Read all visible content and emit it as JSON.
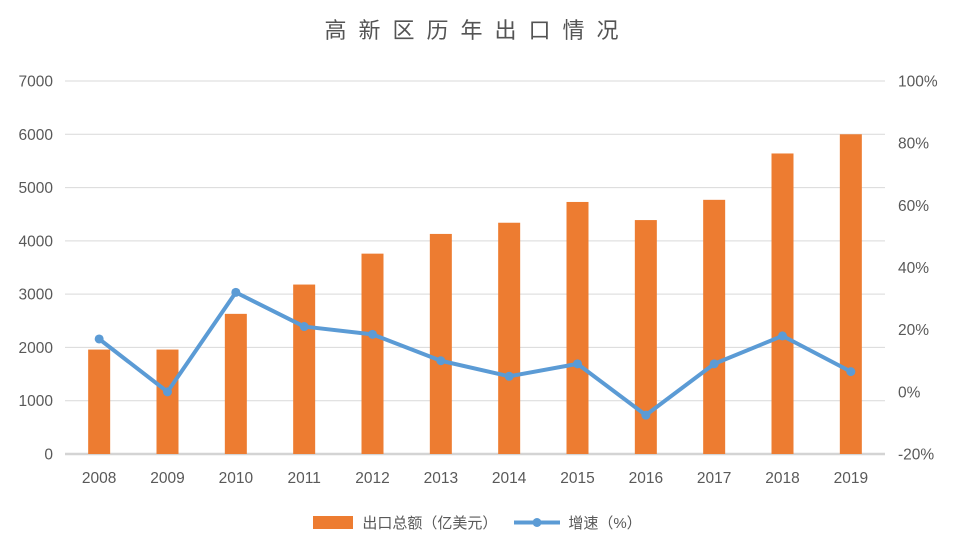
{
  "title": "高新区历年出口情况",
  "legend": {
    "bar_label": "出口总额（亿美元）",
    "line_label": "增速（%）"
  },
  "colors": {
    "bar": "#ED7C31",
    "line": "#5B9BD5",
    "text": "#595959",
    "gridline": "#D9D9D9",
    "axis_line": "#D4D4D4",
    "background": "#FFFFFF"
  },
  "chart_data": {
    "type": "bar",
    "subtype": "combo-bar-line-dual-axis",
    "title": "高新区历年出口情况",
    "categories": [
      "2008",
      "2009",
      "2010",
      "2011",
      "2012",
      "2013",
      "2014",
      "2015",
      "2016",
      "2017",
      "2018",
      "2019"
    ],
    "series": [
      {
        "name": "出口总额（亿美元）",
        "type": "bar",
        "axis": "left",
        "color": "#ED7C31",
        "values": [
          1960,
          1960,
          2630,
          3180,
          3760,
          4130,
          4340,
          4730,
          4390,
          4770,
          5640,
          6000
        ]
      },
      {
        "name": "增速（%）",
        "type": "line",
        "axis": "right",
        "color": "#5B9BD5",
        "values": [
          17,
          0,
          32,
          21,
          18.5,
          10,
          5,
          9,
          -7.5,
          9,
          18,
          6.5
        ]
      }
    ],
    "left_axis": {
      "min": 0,
      "max": 7000,
      "step": 1000,
      "ticks": [
        "0",
        "1000",
        "2000",
        "3000",
        "4000",
        "5000",
        "6000",
        "7000"
      ]
    },
    "right_axis": {
      "min": -20,
      "max": 100,
      "step": 20,
      "ticks": [
        "-20%",
        "0%",
        "20%",
        "40%",
        "60%",
        "80%",
        "100%"
      ]
    },
    "grid": true,
    "legend_position": "bottom"
  }
}
